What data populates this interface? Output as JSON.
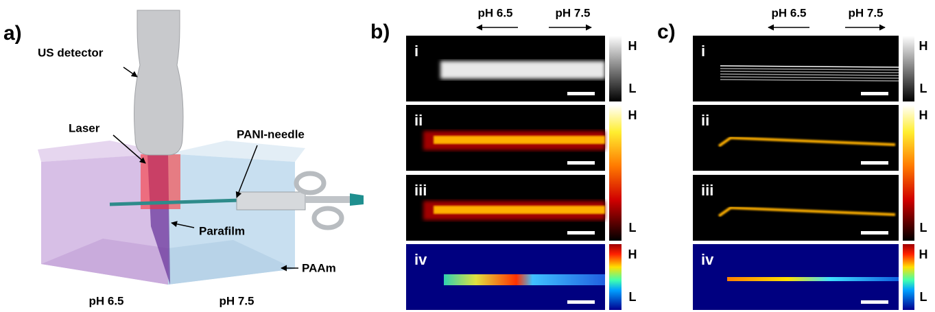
{
  "panels": [
    {
      "label": "a)",
      "annotations": [
        "US detector",
        "Laser",
        "PANI-needle",
        "Parafilm",
        "PAAm"
      ],
      "bottom_labels": [
        "pH 6.5",
        "pH 7.5"
      ]
    },
    {
      "label": "b)",
      "arrows": [
        "pH 6.5",
        "pH 7.5"
      ],
      "rows": [
        "i",
        "ii",
        "iii",
        "iv"
      ],
      "colorbars": [
        {
          "high": "H",
          "low": "L"
        },
        {
          "high": "H",
          "low": "L"
        },
        {
          "high": "H",
          "low": "L"
        }
      ]
    },
    {
      "label": "c)",
      "arrows": [
        "pH 6.5",
        "pH 7.5"
      ],
      "rows": [
        "i",
        "ii",
        "iii",
        "iv"
      ],
      "colorbars": [
        {
          "high": "H",
          "low": "L"
        },
        {
          "high": "H",
          "low": "L"
        },
        {
          "high": "H",
          "low": "L"
        }
      ]
    }
  ]
}
